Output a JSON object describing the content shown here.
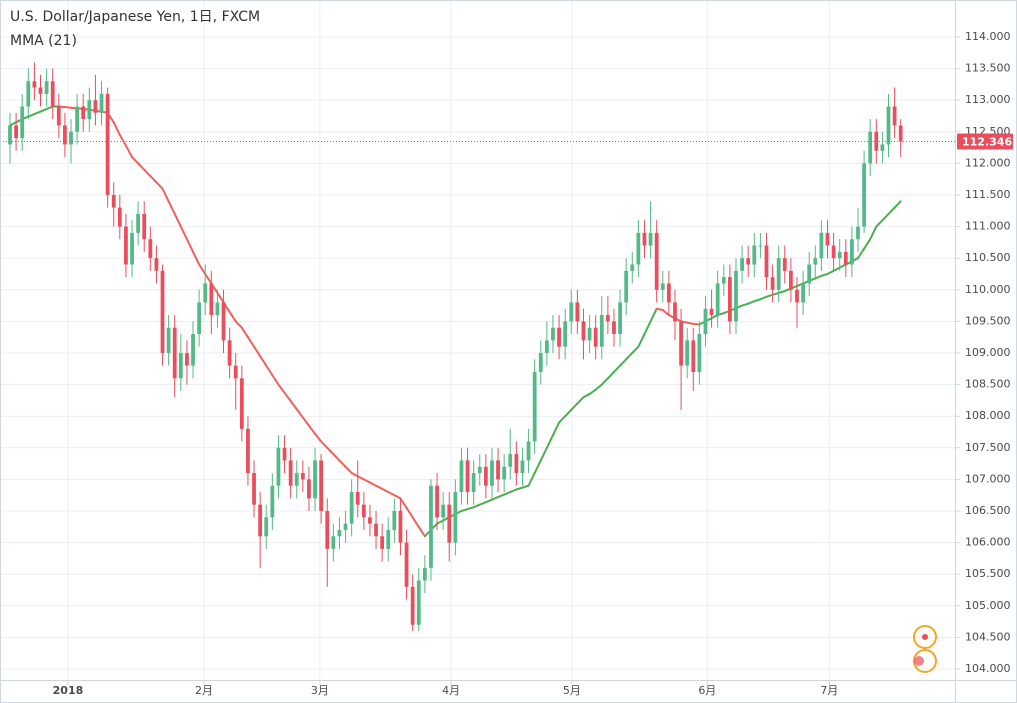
{
  "chart_data": {
    "type": "candlestick",
    "title": "U.S. Dollar/Japanese Yen, 1日, FXCM",
    "up_color": "#53b987",
    "down_color": "#eb4d5c",
    "open": [
      112.3,
      112.6,
      112.4,
      112.9,
      113.3,
      113.2,
      113.1,
      113.3,
      112.9,
      112.6,
      112.3,
      112.5,
      112.9,
      112.7,
      113.0,
      112.8,
      113.1,
      111.5,
      111.3,
      111.0,
      110.4,
      110.9,
      111.2,
      110.8,
      110.5,
      110.3,
      109.0,
      109.4,
      108.6,
      109.0,
      108.8,
      109.3,
      109.8,
      110.1,
      109.6,
      109.8,
      109.2,
      108.8,
      108.6,
      107.8,
      107.1,
      106.6,
      106.1,
      106.4,
      106.9,
      107.5,
      107.3,
      106.9,
      107.1,
      107.0,
      106.7,
      107.3,
      106.5,
      105.9,
      106.1,
      106.2,
      106.3,
      106.8,
      106.6,
      106.4,
      106.3,
      106.1,
      105.9,
      106.2,
      106.5,
      106.0,
      105.3,
      104.7,
      105.4,
      105.6,
      106.9,
      106.4,
      106.6,
      106.0,
      106.8,
      107.3,
      106.8,
      107.1,
      107.2,
      106.9,
      107.3,
      107.0,
      107.2,
      107.4,
      107.1,
      107.3,
      107.6,
      108.7,
      109.0,
      109.2,
      109.4,
      109.1,
      109.5,
      109.8,
      109.5,
      109.2,
      109.4,
      109.1,
      109.6,
      109.5,
      109.3,
      109.8,
      110.3,
      110.4,
      110.9,
      110.7,
      110.9,
      110.0,
      110.1,
      109.8,
      109.5,
      108.8,
      109.2,
      108.7,
      109.3,
      109.7,
      109.6,
      110.1,
      110.2,
      109.5,
      110.3,
      110.5,
      110.4,
      110.7,
      110.7,
      110.2,
      110.0,
      110.5,
      110.3,
      110.0,
      109.8,
      110.1,
      110.4,
      110.5,
      110.9,
      110.7,
      110.5,
      110.6,
      110.4,
      110.8,
      111.0,
      112.0,
      112.5,
      112.2,
      112.3,
      112.9,
      112.6
    ],
    "high": [
      112.8,
      112.8,
      113.1,
      113.5,
      113.6,
      113.4,
      113.5,
      113.5,
      113.1,
      112.8,
      112.7,
      113.1,
      113.1,
      113.2,
      113.4,
      113.3,
      113.2,
      111.7,
      111.5,
      111.2,
      111.1,
      111.4,
      111.4,
      111.0,
      110.7,
      110.4,
      109.6,
      109.6,
      109.3,
      109.2,
      109.5,
      110.0,
      110.4,
      110.3,
      110.0,
      110.0,
      109.4,
      109.0,
      108.8,
      108.0,
      107.3,
      106.8,
      106.6,
      107.1,
      107.7,
      107.7,
      107.5,
      107.3,
      107.3,
      107.2,
      107.5,
      107.4,
      106.7,
      106.3,
      106.4,
      106.5,
      107.0,
      107.3,
      106.8,
      106.6,
      106.5,
      106.3,
      106.4,
      106.7,
      106.7,
      106.2,
      105.5,
      105.6,
      105.8,
      107.0,
      107.1,
      106.8,
      106.8,
      107.0,
      107.5,
      107.5,
      107.3,
      107.4,
      107.4,
      107.5,
      107.5,
      107.4,
      107.8,
      107.6,
      107.5,
      107.8,
      108.9,
      109.2,
      109.5,
      109.6,
      109.6,
      109.7,
      110.0,
      110.0,
      109.7,
      109.6,
      109.6,
      109.9,
      109.9,
      109.7,
      110.0,
      110.5,
      110.6,
      111.1,
      111.1,
      111.4,
      111.1,
      110.3,
      110.3,
      110.0,
      109.7,
      109.4,
      109.4,
      109.5,
      109.9,
      110.0,
      110.3,
      110.4,
      110.4,
      110.5,
      110.7,
      110.7,
      110.9,
      110.9,
      110.9,
      110.4,
      110.7,
      110.7,
      110.5,
      110.2,
      110.3,
      110.6,
      110.7,
      111.1,
      111.1,
      110.9,
      110.8,
      110.8,
      111.0,
      111.3,
      112.2,
      112.7,
      112.7,
      112.5,
      113.1,
      113.2,
      112.7
    ],
    "low": [
      112.0,
      112.2,
      112.2,
      112.7,
      113.0,
      112.9,
      112.9,
      112.7,
      112.4,
      112.1,
      112.0,
      112.3,
      112.5,
      112.5,
      112.6,
      112.6,
      111.3,
      111.0,
      110.8,
      110.2,
      110.2,
      110.7,
      110.6,
      110.3,
      110.1,
      108.8,
      108.8,
      108.3,
      108.4,
      108.5,
      108.6,
      109.1,
      109.6,
      109.3,
      109.4,
      109.0,
      108.6,
      108.1,
      107.6,
      106.9,
      106.4,
      105.6,
      105.9,
      106.2,
      106.7,
      107.1,
      106.7,
      106.7,
      106.8,
      106.5,
      106.5,
      106.3,
      105.3,
      105.7,
      105.9,
      106.0,
      106.1,
      106.4,
      106.2,
      106.1,
      105.9,
      105.7,
      105.7,
      106.0,
      105.8,
      105.1,
      104.6,
      104.6,
      105.2,
      105.4,
      106.2,
      106.2,
      105.7,
      105.8,
      106.6,
      106.6,
      106.6,
      106.9,
      106.7,
      106.7,
      106.8,
      106.8,
      107.0,
      106.9,
      106.9,
      107.1,
      107.4,
      108.5,
      108.8,
      109.0,
      108.9,
      108.9,
      109.3,
      109.3,
      108.9,
      109.0,
      108.9,
      108.9,
      109.3,
      109.1,
      109.1,
      109.6,
      110.1,
      110.2,
      110.5,
      110.5,
      109.8,
      109.8,
      109.6,
      109.2,
      108.1,
      108.6,
      108.4,
      108.5,
      109.1,
      109.4,
      109.4,
      109.9,
      109.3,
      109.3,
      110.1,
      110.2,
      110.2,
      110.5,
      110.0,
      109.8,
      109.8,
      110.1,
      109.8,
      109.4,
      109.6,
      109.9,
      110.2,
      110.3,
      110.5,
      110.3,
      110.3,
      110.2,
      110.2,
      110.6,
      110.9,
      111.8,
      112.0,
      112.0,
      112.1,
      112.4,
      112.1
    ],
    "close": [
      112.6,
      112.4,
      112.9,
      113.3,
      113.2,
      113.1,
      113.3,
      112.9,
      112.6,
      112.3,
      112.5,
      112.9,
      112.7,
      113.0,
      112.8,
      113.1,
      111.5,
      111.3,
      111.0,
      110.4,
      110.9,
      111.2,
      110.8,
      110.5,
      110.3,
      109.0,
      109.4,
      108.6,
      109.0,
      108.8,
      109.3,
      109.8,
      110.1,
      109.6,
      109.8,
      109.2,
      108.8,
      108.6,
      107.8,
      107.1,
      106.6,
      106.1,
      106.4,
      106.9,
      107.5,
      107.3,
      106.9,
      107.1,
      107.0,
      106.7,
      107.3,
      106.5,
      105.9,
      106.1,
      106.2,
      106.3,
      106.8,
      106.6,
      106.4,
      106.3,
      106.1,
      105.9,
      106.2,
      106.5,
      106.0,
      105.3,
      104.7,
      105.4,
      105.6,
      106.9,
      106.4,
      106.6,
      106.0,
      106.8,
      107.3,
      106.8,
      107.1,
      107.2,
      106.9,
      107.3,
      107.0,
      107.2,
      107.4,
      107.1,
      107.3,
      107.6,
      108.7,
      109.0,
      109.2,
      109.4,
      109.1,
      109.5,
      109.8,
      109.5,
      109.2,
      109.4,
      109.1,
      109.6,
      109.5,
      109.3,
      109.8,
      110.3,
      110.4,
      110.9,
      110.7,
      110.9,
      110.0,
      110.1,
      109.8,
      109.5,
      108.8,
      109.2,
      108.7,
      109.3,
      109.7,
      109.6,
      110.1,
      110.2,
      109.5,
      110.3,
      110.5,
      110.4,
      110.7,
      110.7,
      110.2,
      110.0,
      110.5,
      110.3,
      110.0,
      109.8,
      110.1,
      110.4,
      110.5,
      110.9,
      110.7,
      110.5,
      110.6,
      110.4,
      110.8,
      111.0,
      112.0,
      112.5,
      112.2,
      112.3,
      112.9,
      112.6,
      112.346
    ],
    "ma": {
      "name": "MMA (21)",
      "up_color": "#4caf50",
      "down_color": "#f0605c",
      "values": [
        112.6,
        112.65,
        112.7,
        112.74,
        112.78,
        112.82,
        112.86,
        112.9,
        112.9,
        112.89,
        112.88,
        112.87,
        112.86,
        112.85,
        112.83,
        112.82,
        112.8,
        112.65,
        112.45,
        112.28,
        112.1,
        112.0,
        111.9,
        111.8,
        111.7,
        111.6,
        111.4,
        111.2,
        111.0,
        110.8,
        110.6,
        110.4,
        110.25,
        110.1,
        109.95,
        109.8,
        109.65,
        109.5,
        109.4,
        109.25,
        109.1,
        108.95,
        108.8,
        108.65,
        108.5,
        108.37,
        108.24,
        108.11,
        107.98,
        107.85,
        107.72,
        107.6,
        107.5,
        107.4,
        107.3,
        107.2,
        107.1,
        107.05,
        107.0,
        106.95,
        106.9,
        106.85,
        106.8,
        106.75,
        106.7,
        106.55,
        106.4,
        106.25,
        106.1,
        106.2,
        106.3,
        106.35,
        106.4,
        106.45,
        106.5,
        106.53,
        106.56,
        106.6,
        106.64,
        106.68,
        106.72,
        106.76,
        106.8,
        106.84,
        106.87,
        106.9,
        107.1,
        107.3,
        107.5,
        107.7,
        107.9,
        108.0,
        108.1,
        108.2,
        108.3,
        108.35,
        108.42,
        108.5,
        108.6,
        108.7,
        108.8,
        108.9,
        109.0,
        109.1,
        109.3,
        109.5,
        109.7,
        109.68,
        109.6,
        109.55,
        109.5,
        109.48,
        109.46,
        109.45,
        109.5,
        109.55,
        109.6,
        109.63,
        109.67,
        109.71,
        109.75,
        109.78,
        109.82,
        109.85,
        109.89,
        109.92,
        109.95,
        109.98,
        110.02,
        110.06,
        110.1,
        110.14,
        110.18,
        110.22,
        110.25,
        110.3,
        110.35,
        110.4,
        110.45,
        110.5,
        110.65,
        110.8,
        111.0,
        111.1,
        111.2,
        111.3,
        111.4
      ]
    },
    "xlim": [
      -1.64,
      154.9
    ],
    "xticks": [
      {
        "value": 9.5,
        "label": "2018"
      },
      {
        "value": 31.8,
        "label": "2月"
      },
      {
        "value": 50.8,
        "label": "3月"
      },
      {
        "value": 72.3,
        "label": "4月"
      },
      {
        "value": 92.1,
        "label": "5月"
      },
      {
        "value": 114.3,
        "label": "6月"
      },
      {
        "value": 134.3,
        "label": "7月"
      }
    ],
    "ylim": [
      103.826,
      114.585
    ],
    "yticks": [
      {
        "value": 104,
        "label": "104.000"
      },
      {
        "value": 104.5,
        "label": "104.500"
      },
      {
        "value": 105,
        "label": "105.000"
      },
      {
        "value": 105.5,
        "label": "105.500"
      },
      {
        "value": 106,
        "label": "106.000"
      },
      {
        "value": 106.5,
        "label": "106.500"
      },
      {
        "value": 107,
        "label": "107.000"
      },
      {
        "value": 107.5,
        "label": "107.500"
      },
      {
        "value": 108,
        "label": "108.000"
      },
      {
        "value": 108.5,
        "label": "108.500"
      },
      {
        "value": 109,
        "label": "109.000"
      },
      {
        "value": 109.5,
        "label": "109.500"
      },
      {
        "value": 110,
        "label": "110.000"
      },
      {
        "value": 110.5,
        "label": "110.500"
      },
      {
        "value": 111,
        "label": "111.000"
      },
      {
        "value": 111.5,
        "label": "111.500"
      },
      {
        "value": 112,
        "label": "112.000"
      },
      {
        "value": 112.5,
        "label": "112.500"
      },
      {
        "value": 113,
        "label": "113.000"
      },
      {
        "value": 113.5,
        "label": "113.500"
      },
      {
        "value": 114,
        "label": "114.000"
      }
    ],
    "grid": true
  }
}
